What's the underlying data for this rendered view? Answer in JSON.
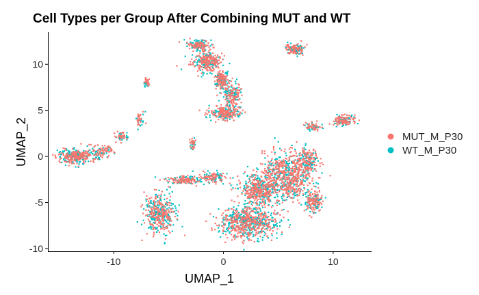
{
  "chart_data": {
    "type": "scatter",
    "title": "Cell Types per Group After Combining MUT and WT",
    "xlabel": "UMAP_1",
    "ylabel": "UMAP_2",
    "xlim": [
      -16,
      13.5
    ],
    "ylim": [
      -10.3,
      13.5
    ],
    "x_ticks": [
      -10,
      0,
      10
    ],
    "x_tick_labels": [
      "-10",
      "0",
      "10"
    ],
    "y_ticks": [
      -10,
      -5,
      0,
      5,
      10
    ],
    "y_tick_labels": [
      "-10",
      "-5",
      "0",
      "5",
      "10"
    ],
    "grid": false,
    "legend_position": "right",
    "series": [
      {
        "name": "MUT_M_P30",
        "color": "#F8766D"
      },
      {
        "name": "WT_M_P30",
        "color": "#00BFC4"
      }
    ],
    "clusters": [
      {
        "cx": -2.3,
        "cy": 12.1,
        "rx": 0.9,
        "ry": 0.5,
        "n": 160
      },
      {
        "cx": -1.6,
        "cy": 10.3,
        "rx": 1.2,
        "ry": 1.0,
        "n": 300
      },
      {
        "cx": -0.2,
        "cy": 8.3,
        "rx": 0.6,
        "ry": 0.9,
        "n": 170
      },
      {
        "cx": 0.8,
        "cy": 6.6,
        "rx": 0.7,
        "ry": 1.3,
        "n": 200
      },
      {
        "cx": 0.2,
        "cy": 4.7,
        "rx": 1.3,
        "ry": 0.6,
        "n": 240
      },
      {
        "cx": 6.5,
        "cy": 11.6,
        "rx": 0.8,
        "ry": 0.5,
        "n": 140
      },
      {
        "cx": 11.0,
        "cy": 3.9,
        "rx": 0.8,
        "ry": 0.6,
        "n": 150
      },
      {
        "cx": 8.2,
        "cy": 3.2,
        "rx": 0.6,
        "ry": 0.4,
        "n": 70
      },
      {
        "cx": -7.0,
        "cy": 8.0,
        "rx": 0.25,
        "ry": 0.6,
        "n": 40
      },
      {
        "cx": -7.6,
        "cy": 4.0,
        "rx": 0.35,
        "ry": 0.9,
        "n": 40
      },
      {
        "cx": -9.3,
        "cy": 2.2,
        "rx": 0.6,
        "ry": 0.5,
        "n": 50
      },
      {
        "cx": -11.0,
        "cy": 0.6,
        "rx": 0.8,
        "ry": 0.6,
        "n": 80
      },
      {
        "cx": -13.3,
        "cy": 0.0,
        "rx": 1.6,
        "ry": 0.7,
        "n": 340
      },
      {
        "cx": -2.8,
        "cy": 1.4,
        "rx": 0.25,
        "ry": 0.6,
        "n": 35
      },
      {
        "cx": -5.8,
        "cy": -6.2,
        "rx": 1.3,
        "ry": 1.9,
        "n": 420
      },
      {
        "cx": -3.6,
        "cy": -2.6,
        "rx": 1.4,
        "ry": 0.4,
        "n": 150
      },
      {
        "cx": -1.0,
        "cy": -2.3,
        "rx": 1.2,
        "ry": 0.5,
        "n": 120
      },
      {
        "cx": 2.3,
        "cy": -7.2,
        "rx": 2.4,
        "ry": 1.6,
        "n": 700
      },
      {
        "cx": 3.2,
        "cy": -3.6,
        "rx": 1.6,
        "ry": 1.6,
        "n": 450
      },
      {
        "cx": 5.8,
        "cy": -2.2,
        "rx": 2.0,
        "ry": 2.4,
        "n": 700
      },
      {
        "cx": 7.7,
        "cy": -0.6,
        "rx": 0.9,
        "ry": 1.4,
        "n": 200
      },
      {
        "cx": 8.2,
        "cy": -4.9,
        "rx": 0.7,
        "ry": 1.1,
        "n": 160
      }
    ]
  }
}
